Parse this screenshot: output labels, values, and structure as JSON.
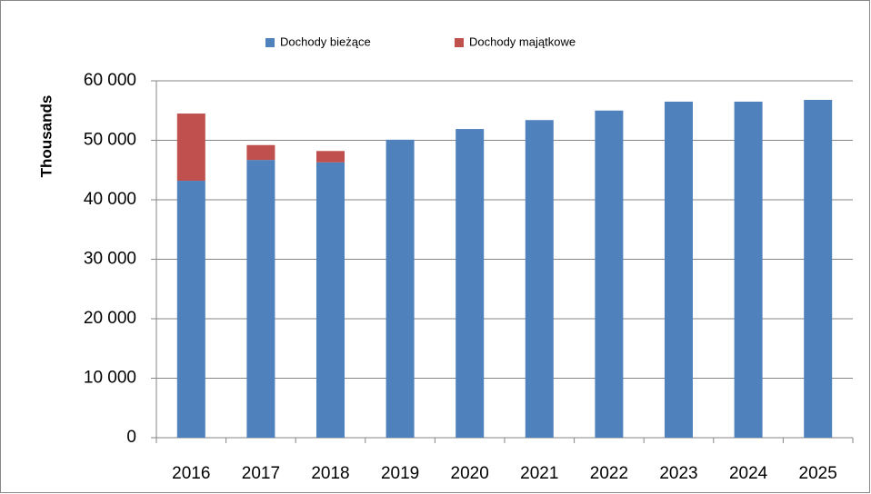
{
  "chart_data": {
    "type": "stacked_bar",
    "y_axis_label": "Thousands",
    "categories": [
      "2016",
      "2017",
      "2018",
      "2019",
      "2020",
      "2021",
      "2022",
      "2023",
      "2024",
      "2025"
    ],
    "series": [
      {
        "name": "Dochody bieżące",
        "color": "#4f81bd",
        "values": [
          43200,
          46700,
          46300,
          50100,
          51900,
          53400,
          55000,
          56500,
          56500,
          56800
        ]
      },
      {
        "name": "Dochody majątkowe",
        "color": "#c0504d",
        "values": [
          11300,
          2500,
          1900,
          null,
          null,
          null,
          null,
          null,
          null,
          null
        ]
      }
    ],
    "ylim": [
      0,
      60000
    ],
    "yticks": [
      0,
      {
        "value": 10000,
        "label": "10 000"
      },
      {
        "value": 20000,
        "label": "20 000"
      },
      {
        "value": 30000,
        "label": "30 000"
      },
      {
        "value": 40000,
        "label": "40 000"
      },
      {
        "value": 50000,
        "label": "50 000"
      },
      {
        "value": 60000,
        "label": "60 000"
      }
    ],
    "grid": true,
    "legend": "top"
  }
}
